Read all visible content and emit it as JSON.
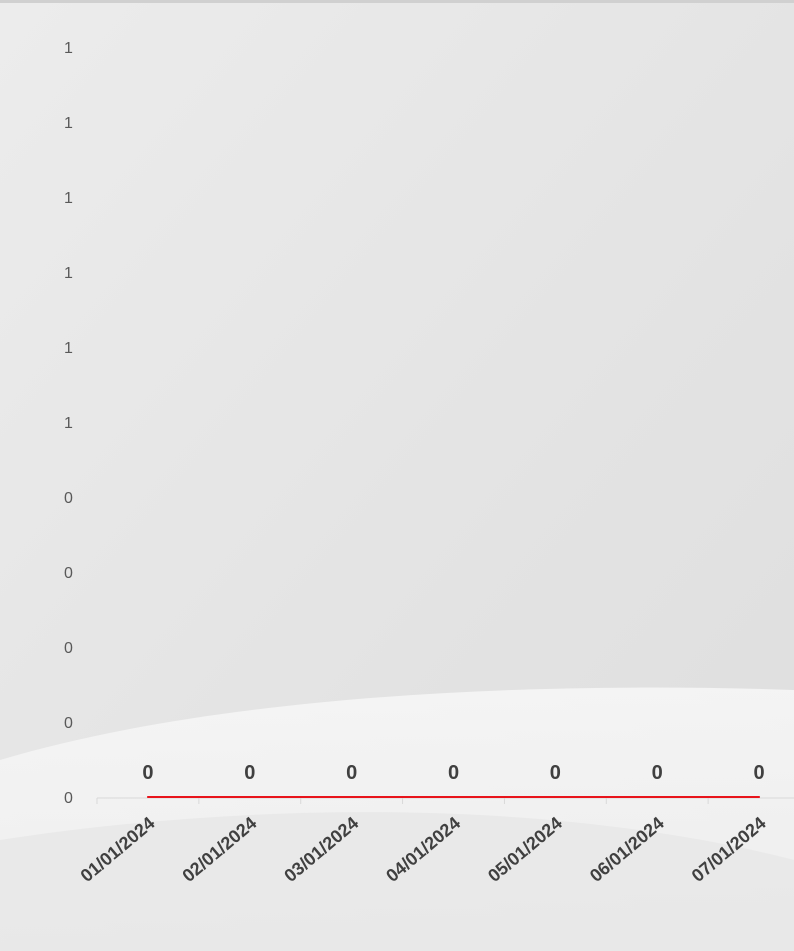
{
  "chart_data": {
    "type": "line",
    "x": [
      "01/01/2024",
      "02/01/2024",
      "03/01/2024",
      "04/01/2024",
      "05/01/2024",
      "06/01/2024",
      "07/01/2024"
    ],
    "series": [
      {
        "values": [
          0,
          0,
          0,
          0,
          0,
          0,
          0
        ],
        "color": "#e8141b"
      }
    ],
    "data_labels": [
      "0",
      "0",
      "0",
      "0",
      "0",
      "0",
      "0"
    ],
    "y_tick_labels": [
      "0",
      "0",
      "0",
      "0",
      "0",
      "1",
      "1",
      "1",
      "1",
      "1",
      "1"
    ],
    "ylim": [
      0,
      1
    ],
    "grid": false,
    "legend": "none",
    "title": "",
    "xlabel": "",
    "ylabel": ""
  }
}
